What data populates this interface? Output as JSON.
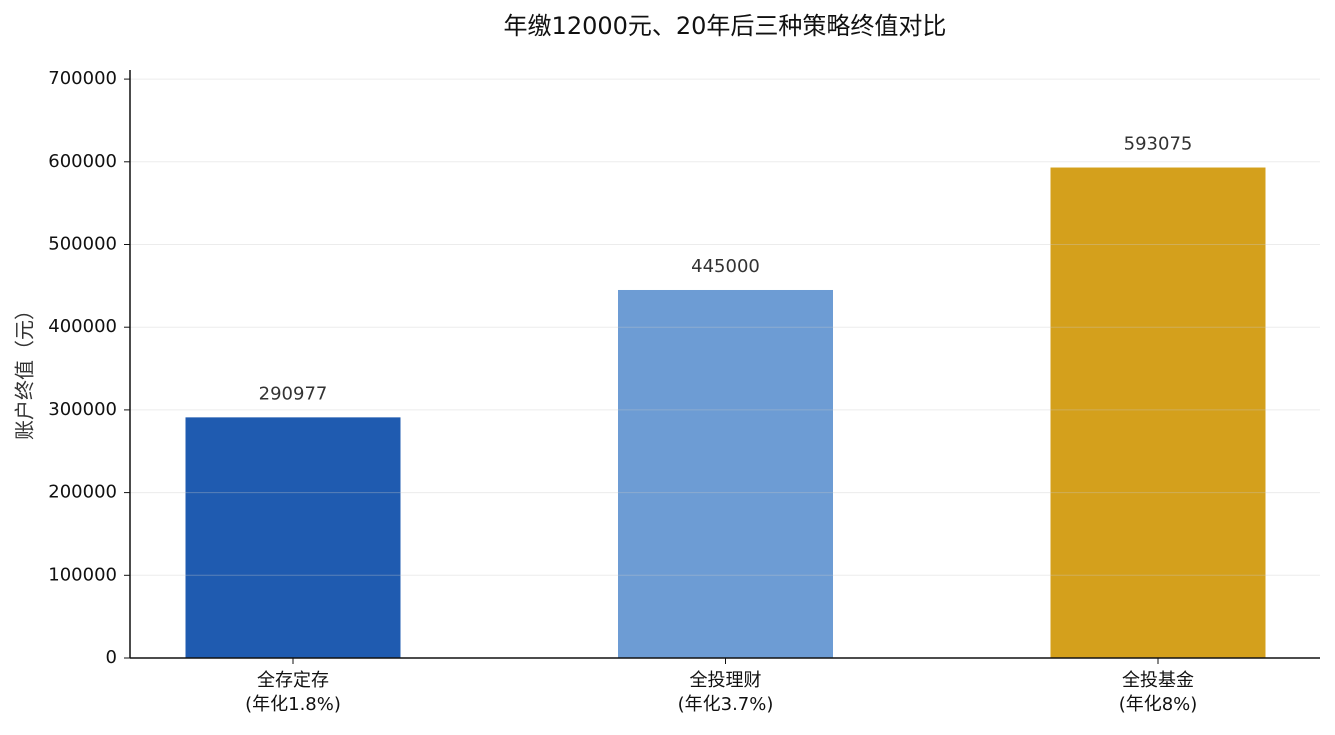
{
  "chart_data": {
    "type": "bar",
    "title": "年缴12000元、20年后三种策略终值对比",
    "y_label": "账户终值（元）",
    "categories": [
      "全存定存\n(年化1.8%)",
      "全投理财\n(年化3.7%)",
      "全投基金\n(年化8%)"
    ],
    "values": [
      290977,
      445000,
      593075
    ],
    "colors": [
      "#1f5bb0",
      "#6d9cd4",
      "#d4a01c"
    ],
    "ylim": [
      0,
      711000
    ],
    "yticks": [
      0,
      100000,
      200000,
      300000,
      400000,
      500000,
      600000,
      700000
    ],
    "grid": true
  }
}
